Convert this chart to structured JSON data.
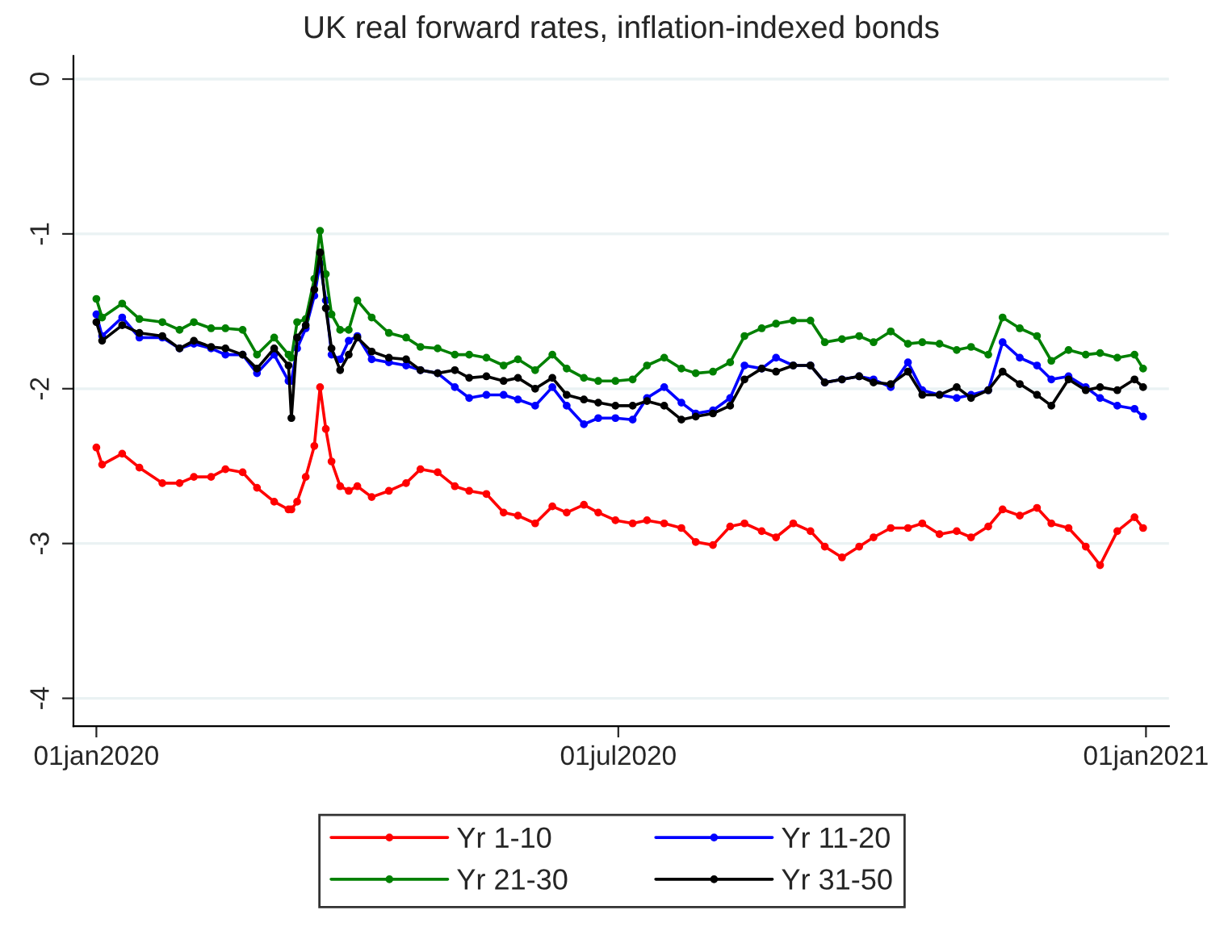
{
  "chart_data": {
    "type": "line",
    "title": "UK real forward rates, inflation-indexed bonds",
    "x": [
      "2020-01-01",
      "2020-01-03",
      "2020-01-10",
      "2020-01-16",
      "2020-01-24",
      "2020-01-30",
      "2020-02-04",
      "2020-02-10",
      "2020-02-15",
      "2020-02-21",
      "2020-02-26",
      "2020-03-03",
      "2020-03-08",
      "2020-03-09",
      "2020-03-11",
      "2020-03-14",
      "2020-03-17",
      "2020-03-19",
      "2020-03-21",
      "2020-03-23",
      "2020-03-26",
      "2020-03-29",
      "2020-04-01",
      "2020-04-06",
      "2020-04-12",
      "2020-04-18",
      "2020-04-23",
      "2020-04-29",
      "2020-05-05",
      "2020-05-10",
      "2020-05-16",
      "2020-05-22",
      "2020-05-27",
      "2020-06-02",
      "2020-06-08",
      "2020-06-13",
      "2020-06-19",
      "2020-06-24",
      "2020-06-30",
      "2020-07-06",
      "2020-07-11",
      "2020-07-17",
      "2020-07-23",
      "2020-07-28",
      "2020-08-03",
      "2020-08-09",
      "2020-08-14",
      "2020-08-20",
      "2020-08-25",
      "2020-08-31",
      "2020-09-06",
      "2020-09-11",
      "2020-09-17",
      "2020-09-23",
      "2020-09-28",
      "2020-10-04",
      "2020-10-10",
      "2020-10-15",
      "2020-10-21",
      "2020-10-27",
      "2020-11-01",
      "2020-11-07",
      "2020-11-12",
      "2020-11-18",
      "2020-11-24",
      "2020-11-29",
      "2020-12-05",
      "2020-12-11",
      "2020-12-16",
      "2020-12-22",
      "2020-12-28",
      "2020-12-31"
    ],
    "series": [
      {
        "name": "Yr 1-10",
        "color": "#ff0000",
        "values": [
          -2.38,
          -2.49,
          -2.42,
          -2.51,
          -2.61,
          -2.61,
          -2.57,
          -2.57,
          -2.52,
          -2.54,
          -2.64,
          -2.73,
          -2.78,
          -2.78,
          -2.73,
          -2.57,
          -2.37,
          -1.99,
          -2.26,
          -2.47,
          -2.63,
          -2.66,
          -2.63,
          -2.7,
          -2.66,
          -2.61,
          -2.52,
          -2.54,
          -2.63,
          -2.66,
          -2.68,
          -2.8,
          -2.82,
          -2.87,
          -2.76,
          -2.8,
          -2.75,
          -2.8,
          -2.85,
          -2.87,
          -2.85,
          -2.87,
          -2.9,
          -2.99,
          -3.01,
          -2.89,
          -2.87,
          -2.92,
          -2.96,
          -2.87,
          -2.92,
          -3.02,
          -3.09,
          -3.02,
          -2.96,
          -2.9,
          -2.9,
          -2.87,
          -2.94,
          -2.92,
          -2.96,
          -2.89,
          -2.78,
          -2.82,
          -2.77,
          -2.87,
          -2.9,
          -3.02,
          -3.14,
          -2.92,
          -2.83,
          -2.9
        ]
      },
      {
        "name": "Yr 11-20",
        "color": "#0000ff",
        "values": [
          -1.52,
          -1.66,
          -1.54,
          -1.67,
          -1.67,
          -1.74,
          -1.71,
          -1.74,
          -1.78,
          -1.78,
          -1.9,
          -1.78,
          -1.95,
          -1.95,
          -1.74,
          -1.61,
          -1.4,
          -1.19,
          -1.43,
          -1.78,
          -1.81,
          -1.69,
          -1.66,
          -1.81,
          -1.83,
          -1.85,
          -1.88,
          -1.9,
          -1.99,
          -2.06,
          -2.04,
          -2.04,
          -2.07,
          -2.11,
          -1.99,
          -2.11,
          -2.23,
          -2.19,
          -2.19,
          -2.2,
          -2.06,
          -1.99,
          -2.09,
          -2.16,
          -2.14,
          -2.06,
          -1.85,
          -1.87,
          -1.8,
          -1.85,
          -1.85,
          -1.96,
          -1.94,
          -1.92,
          -1.94,
          -1.99,
          -1.83,
          -2.01,
          -2.04,
          -2.06,
          -2.04,
          -2.01,
          -1.7,
          -1.8,
          -1.85,
          -1.94,
          -1.92,
          -1.99,
          -2.06,
          -2.11,
          -2.13,
          -2.18
        ]
      },
      {
        "name": "Yr 21-30",
        "color": "#008000",
        "values": [
          -1.42,
          -1.54,
          -1.45,
          -1.55,
          -1.57,
          -1.62,
          -1.57,
          -1.61,
          -1.61,
          -1.62,
          -1.78,
          -1.67,
          -1.78,
          -1.8,
          -1.57,
          -1.55,
          -1.29,
          -0.98,
          -1.26,
          -1.52,
          -1.62,
          -1.62,
          -1.43,
          -1.54,
          -1.64,
          -1.67,
          -1.73,
          -1.74,
          -1.78,
          -1.78,
          -1.8,
          -1.85,
          -1.81,
          -1.88,
          -1.78,
          -1.87,
          -1.93,
          -1.95,
          -1.95,
          -1.94,
          -1.85,
          -1.8,
          -1.87,
          -1.9,
          -1.89,
          -1.83,
          -1.66,
          -1.61,
          -1.58,
          -1.56,
          -1.56,
          -1.7,
          -1.68,
          -1.66,
          -1.7,
          -1.63,
          -1.71,
          -1.7,
          -1.71,
          -1.75,
          -1.73,
          -1.78,
          -1.54,
          -1.61,
          -1.66,
          -1.82,
          -1.75,
          -1.78,
          -1.77,
          -1.8,
          -1.78,
          -1.87
        ]
      },
      {
        "name": "Yr 31-50",
        "color": "#000000",
        "values": [
          -1.57,
          -1.69,
          -1.59,
          -1.64,
          -1.66,
          -1.74,
          -1.69,
          -1.73,
          -1.74,
          -1.78,
          -1.87,
          -1.74,
          -1.85,
          -2.19,
          -1.67,
          -1.59,
          -1.36,
          -1.12,
          -1.48,
          -1.74,
          -1.88,
          -1.78,
          -1.67,
          -1.76,
          -1.8,
          -1.81,
          -1.88,
          -1.9,
          -1.88,
          -1.93,
          -1.92,
          -1.95,
          -1.93,
          -2.0,
          -1.93,
          -2.04,
          -2.07,
          -2.09,
          -2.11,
          -2.11,
          -2.08,
          -2.11,
          -2.2,
          -2.18,
          -2.16,
          -2.11,
          -1.94,
          -1.87,
          -1.89,
          -1.85,
          -1.85,
          -1.96,
          -1.94,
          -1.92,
          -1.96,
          -1.97,
          -1.89,
          -2.04,
          -2.04,
          -1.99,
          -2.06,
          -2.01,
          -1.89,
          -1.97,
          -2.04,
          -2.11,
          -1.94,
          -2.01,
          -1.99,
          -2.01,
          -1.94,
          -1.99
        ]
      }
    ],
    "xlim": [
      "2019-12-24",
      "2021-01-09"
    ],
    "xticks": [
      {
        "value": "2020-01-01",
        "label": "01jan2020"
      },
      {
        "value": "2020-07-01",
        "label": "01jul2020"
      },
      {
        "value": "2021-01-01",
        "label": "01jan2021"
      }
    ],
    "ylim": [
      -4.18,
      0.15
    ],
    "yticks": [
      -4,
      -3,
      -2,
      -1,
      0
    ],
    "grid": "y",
    "legend": "bottom",
    "marker": "circle",
    "line_style": "solid"
  }
}
